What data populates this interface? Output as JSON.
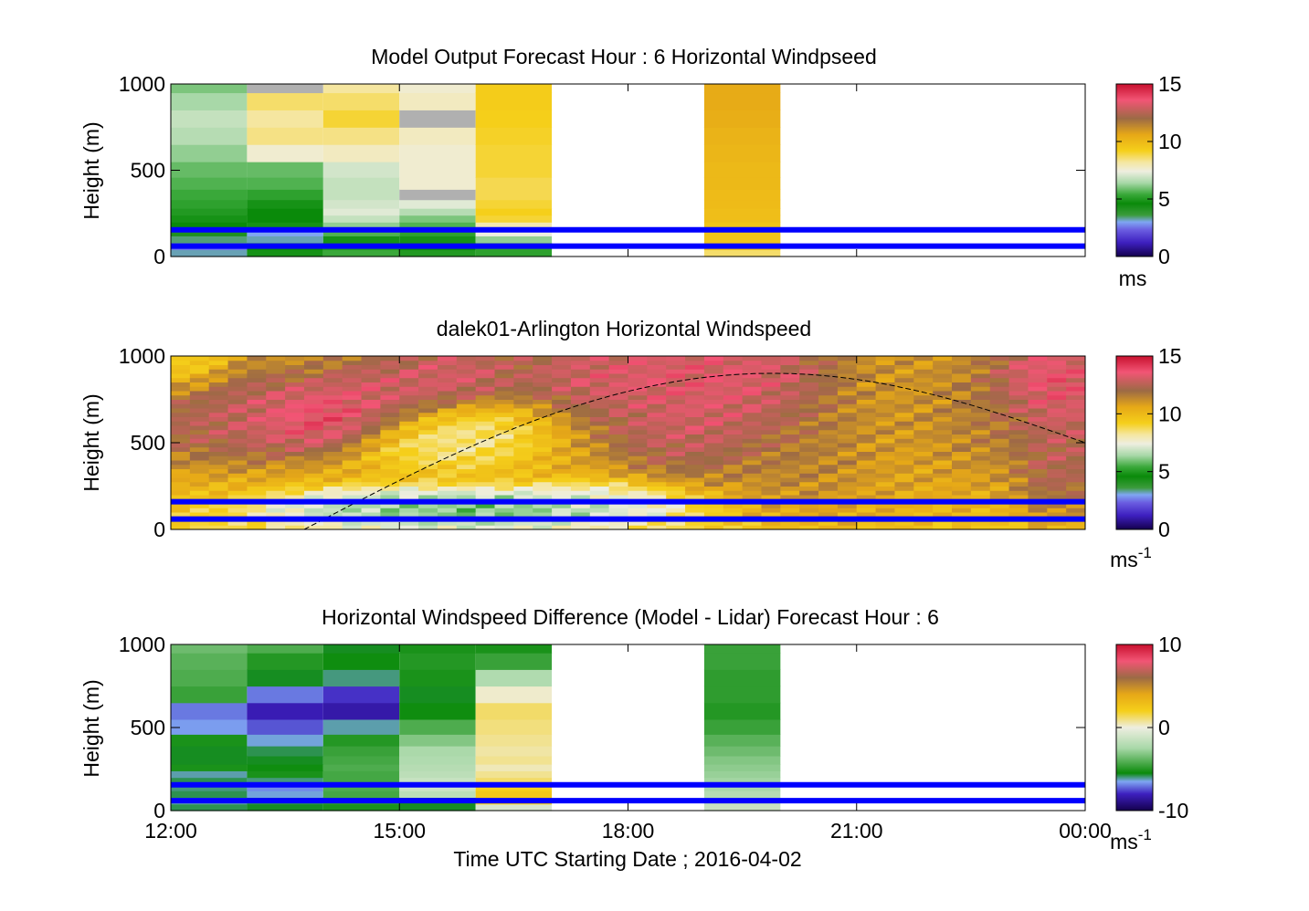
{
  "figure": {
    "xlabel": "Time UTC  Starting Date ; 2016-04-02",
    "xticks": [
      {
        "hour": 12,
        "label": "12:00"
      },
      {
        "hour": 15,
        "label": "15:00"
      },
      {
        "hour": 18,
        "label": "18:00"
      },
      {
        "hour": 21,
        "label": "21:00"
      },
      {
        "hour": 24,
        "label": "00:00"
      }
    ],
    "xlim": [
      12,
      24
    ]
  },
  "colors": {
    "windspeed_scale": [
      {
        "v": 0,
        "c": "#14004d"
      },
      {
        "v": 1.2,
        "c": "#3d1fbf"
      },
      {
        "v": 2.3,
        "c": "#6a5ce0"
      },
      {
        "v": 3.0,
        "c": "#7fa6f2"
      },
      {
        "v": 3.6,
        "c": "#3b9b3b"
      },
      {
        "v": 4.6,
        "c": "#0a8a0a"
      },
      {
        "v": 5.4,
        "c": "#3aa83a"
      },
      {
        "v": 6.4,
        "c": "#a8d8a8"
      },
      {
        "v": 7.4,
        "c": "#eeeee0"
      },
      {
        "v": 8.2,
        "c": "#f5e6a0"
      },
      {
        "v": 9.2,
        "c": "#f5cf1a"
      },
      {
        "v": 10.6,
        "c": "#e6a817"
      },
      {
        "v": 12.0,
        "c": "#9c6a45"
      },
      {
        "v": 13.6,
        "c": "#f25575"
      },
      {
        "v": 15,
        "c": "#c8102e"
      }
    ],
    "difference_scale": [
      {
        "v": -10,
        "c": "#14004d"
      },
      {
        "v": -8,
        "c": "#3d1fbf"
      },
      {
        "v": -6.5,
        "c": "#7fa6f2"
      },
      {
        "v": -5.5,
        "c": "#0a8a0a"
      },
      {
        "v": -2.5,
        "c": "#a8d8a8"
      },
      {
        "v": 0,
        "c": "#eeeee0"
      },
      {
        "v": 2.0,
        "c": "#f5cf1a"
      },
      {
        "v": 4.0,
        "c": "#e6a817"
      },
      {
        "v": 6.0,
        "c": "#9c6a45"
      },
      {
        "v": 8.0,
        "c": "#f25575"
      },
      {
        "v": 10,
        "c": "#c8102e"
      }
    ],
    "model_missing": "#b0b0b0",
    "blue_line": "#0000ff"
  },
  "chart_data": [
    {
      "type": "heatmap",
      "title": "Model Output   Forecast Hour : 6 Horizontal Windpseed",
      "ylabel": "Height (m)",
      "ylim": [
        0,
        1000
      ],
      "yticks": [
        0,
        500,
        1000
      ],
      "colorbar": {
        "min": 0,
        "max": 15,
        "ticks": [
          0,
          5,
          10,
          15
        ],
        "unit_label": "ms",
        "unit_sup": ""
      },
      "reference_lines_m": [
        60,
        155
      ],
      "heights_m": [
        20,
        60,
        100,
        140,
        180,
        220,
        260,
        300,
        360,
        420,
        500,
        600,
        700,
        800,
        900,
        1000
      ],
      "columns": [
        {
          "t0": 12,
          "t1": 13,
          "values": [
            3.2,
            2.6,
            3.4,
            4.2,
            4.6,
            4.8,
            5.0,
            5.2,
            5.4,
            5.6,
            5.8,
            6.2,
            6.6,
            6.8,
            6.4,
            6.0
          ]
        },
        {
          "t0": 13,
          "t1": 14,
          "values": [
            4.8,
            4.6,
            3.2,
            3.0,
            4.8,
            4.6,
            4.6,
            4.8,
            5.2,
            5.6,
            5.8,
            7.6,
            8.4,
            8.2,
            8.6,
            null
          ]
        },
        {
          "t0": 14,
          "t1": 15,
          "values": [
            5.4,
            5.0,
            4.8,
            5.6,
            6.2,
            6.8,
            7.2,
            7.0,
            6.8,
            6.8,
            7.0,
            7.8,
            8.4,
            9.0,
            8.6,
            8.2
          ]
        },
        {
          "t0": 15,
          "t1": 16,
          "values": [
            5.0,
            4.6,
            4.8,
            5.2,
            5.6,
            6.0,
            6.6,
            7.2,
            null,
            7.6,
            7.6,
            7.6,
            7.8,
            null,
            7.8,
            7.6
          ]
        },
        {
          "t0": 16,
          "t1": 17,
          "values": [
            5.2,
            5.2,
            6.2,
            7.4,
            8.0,
            9.0,
            9.2,
            9.0,
            8.8,
            8.8,
            9.0,
            9.0,
            9.1,
            9.2,
            9.3,
            9.3
          ]
        },
        {
          "t0": 19,
          "t1": 20,
          "values": [
            8.6,
            9.6,
            9.6,
            9.6,
            9.6,
            9.8,
            9.8,
            9.9,
            9.9,
            10.0,
            10.0,
            10.1,
            10.2,
            10.4,
            10.5,
            10.5
          ]
        }
      ]
    },
    {
      "type": "heatmap",
      "title": "dalek01-Arlington  Horizontal Windspeed",
      "ylabel": "Height (m)",
      "ylim": [
        0,
        1000
      ],
      "yticks": [
        0,
        500,
        1000
      ],
      "colorbar": {
        "min": 0,
        "max": 15,
        "ticks": [
          0,
          5,
          10,
          15
        ],
        "unit_label": "ms",
        "unit_sup": "-1"
      },
      "reference_lines_m": [
        60,
        160
      ],
      "curve": {
        "start_hour": 13.75,
        "peak_hour": 19.9,
        "peak_height_m": 900,
        "end_hour": 24,
        "end_height_m": 500
      },
      "time_start": 12.0,
      "time_end": 23.85,
      "time_step_h": 0.25,
      "height_step_m": 25,
      "features": [
        {
          "t": 12.2,
          "h": 1000,
          "v": 8.6,
          "sigma_t": 0.3,
          "sigma_h": 120
        },
        {
          "t": 12.6,
          "h": 660,
          "v": 12.3,
          "sigma_t": 0.7,
          "sigma_h": 140
        },
        {
          "t": 13.3,
          "h": 650,
          "v": 13.6,
          "sigma_t": 0.7,
          "sigma_h": 110
        },
        {
          "t": 14.0,
          "h": 640,
          "v": 14.8,
          "sigma_t": 0.5,
          "sigma_h": 90
        },
        {
          "t": 14.8,
          "h": 750,
          "v": 13.7,
          "sigma_t": 0.5,
          "sigma_h": 120
        },
        {
          "t": 15.7,
          "h": 880,
          "v": 13.5,
          "sigma_t": 0.4,
          "sigma_h": 110
        },
        {
          "t": 15.6,
          "h": 550,
          "v": 7.4,
          "sigma_t": 0.7,
          "sigma_h": 110
        },
        {
          "t": 14.8,
          "h": 130,
          "v": 6.4,
          "sigma_t": 0.8,
          "sigma_h": 60
        },
        {
          "t": 16.0,
          "h": 120,
          "v": 4.8,
          "sigma_t": 1.2,
          "sigma_h": 60
        },
        {
          "t": 17.5,
          "h": 160,
          "v": 7.0,
          "sigma_t": 0.7,
          "sigma_h": 60
        },
        {
          "t": 18.3,
          "h": 900,
          "v": 13.8,
          "sigma_t": 1.0,
          "sigma_h": 120
        },
        {
          "t": 18.9,
          "h": 600,
          "v": 13.4,
          "sigma_t": 0.6,
          "sigma_h": 160
        },
        {
          "t": 19.6,
          "h": 800,
          "v": 13.8,
          "sigma_t": 0.6,
          "sigma_h": 170
        },
        {
          "t": 20.4,
          "h": 450,
          "v": 12.2,
          "sigma_t": 0.6,
          "sigma_h": 200
        },
        {
          "t": 21.4,
          "h": 450,
          "v": 10.6,
          "sigma_t": 1.2,
          "sigma_h": 250
        },
        {
          "t": 22.8,
          "h": 600,
          "v": 12.1,
          "sigma_t": 0.6,
          "sigma_h": 180
        },
        {
          "t": 23.5,
          "h": 820,
          "v": 14.6,
          "sigma_t": 0.4,
          "sigma_h": 150
        },
        {
          "t": 23.6,
          "h": 420,
          "v": 13.4,
          "sigma_t": 0.3,
          "sigma_h": 200
        }
      ],
      "background": [
        {
          "h": 0,
          "v": 9.0
        },
        {
          "h": 300,
          "v": 10.4
        },
        {
          "h": 600,
          "v": 11.4
        },
        {
          "h": 1000,
          "v": 11.0
        }
      ]
    },
    {
      "type": "heatmap",
      "title": "Horizontal Windspeed Difference (Model - Lidar) Forecast Hour : 6",
      "ylabel": "Height (m)",
      "ylim": [
        0,
        1000
      ],
      "yticks": [
        0,
        500,
        1000
      ],
      "colorbar": {
        "min": -10,
        "max": 10,
        "ticks": [
          -10,
          0,
          10
        ],
        "unit_label": "ms",
        "unit_sup": "-1"
      },
      "reference_lines_m": [
        60,
        155
      ],
      "heights_m": [
        20,
        60,
        100,
        140,
        180,
        220,
        260,
        300,
        360,
        420,
        500,
        600,
        700,
        800,
        900,
        1000
      ],
      "columns": [
        {
          "t0": 12,
          "t1": 13,
          "values": [
            -5.8,
            -6.2,
            -5.8,
            -6.0,
            -5.8,
            -6.2,
            -5.2,
            -5.6,
            -5.6,
            -5.2,
            -6.6,
            -7.0,
            -4.6,
            -4.2,
            -4.0,
            -3.6
          ]
        },
        {
          "t0": 13,
          "t1": 14,
          "values": [
            -5.6,
            -5.8,
            -6.4,
            -6.8,
            -6.0,
            -5.2,
            -5.4,
            -5.6,
            -5.8,
            -6.4,
            -7.4,
            -8.2,
            -7.0,
            -5.6,
            -5.0,
            -4.2
          ]
        },
        {
          "t0": 14,
          "t1": 15,
          "values": [
            -5.2,
            -4.8,
            -4.4,
            -4.2,
            -4.4,
            -4.4,
            -4.2,
            -4.4,
            -4.6,
            -5.0,
            -6.2,
            -8.4,
            -7.8,
            -6.0,
            -5.4,
            -5.6
          ]
        },
        {
          "t0": 15,
          "t1": 16,
          "values": [
            -5.6,
            -5.2,
            -1.8,
            -1.2,
            -1.4,
            -1.8,
            -2.0,
            -2.2,
            -2.4,
            -3.2,
            -4.2,
            -5.4,
            -5.6,
            -5.2,
            -5.0,
            -5.2
          ]
        },
        {
          "t0": 16,
          "t1": 17,
          "values": [
            -0.8,
            2.0,
            2.4,
            2.0,
            1.2,
            0.8,
            0.4,
            0.8,
            0.6,
            0.8,
            1.0,
            1.2,
            0.2,
            -2.2,
            -4.6,
            -5.2
          ]
        },
        {
          "t0": 19,
          "t1": 20,
          "values": [
            -1.4,
            -1.6,
            -2.0,
            -2.4,
            -2.6,
            -2.8,
            -3.0,
            -3.2,
            -3.6,
            -4.0,
            -4.6,
            -5.0,
            -4.8,
            -4.8,
            -4.6,
            -4.6
          ]
        }
      ]
    }
  ]
}
